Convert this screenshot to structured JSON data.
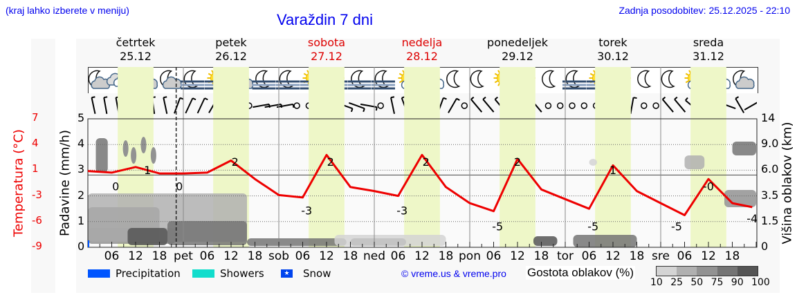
{
  "header": {
    "note": "(kraj lahko izberete v meniju)",
    "title": "Varaždin 7 dni",
    "updated": "Zadnja posodobitev: 25.12.2025 - 22:10"
  },
  "days": [
    {
      "name": "četrtek",
      "date": "25.12",
      "weekend": false
    },
    {
      "name": "petek",
      "date": "26.12",
      "weekend": false
    },
    {
      "name": "sobota",
      "date": "27.12",
      "weekend": true
    },
    {
      "name": "nedelja",
      "date": "28.12",
      "weekend": true
    },
    {
      "name": "ponedeljek",
      "date": "29.12",
      "weekend": false
    },
    {
      "name": "torek",
      "date": "30.12",
      "weekend": false
    },
    {
      "name": "sreda",
      "date": "31.12",
      "weekend": false
    }
  ],
  "axes": {
    "temp_label": "Temperatura (°C)",
    "temp_ticks": [
      "7",
      "4",
      "1",
      "-3",
      "-6",
      "-9"
    ],
    "precip_label": "Padavine (mm/h)",
    "precip_ticks": [
      "5",
      "4",
      "3",
      "2",
      "1",
      "0"
    ],
    "cloud_label": "Višina oblakov (km)",
    "cloud_ticks": [
      "14",
      "9.0",
      "6.0",
      "3.5",
      "1.5",
      "0"
    ],
    "x_ticks": [
      "06",
      "12",
      "18",
      "pet",
      "06",
      "12",
      "18",
      "sob",
      "06",
      "12",
      "18",
      "ned",
      "06",
      "12",
      "18",
      "pon",
      "06",
      "12",
      "18",
      "tor",
      "06",
      "12",
      "18",
      "sre",
      "06",
      "12",
      "18"
    ]
  },
  "weather_icons": [
    "moon-cloud",
    "cloud",
    "sun-cloud",
    "moon-cloud",
    "moon-fog",
    "sun-fog",
    "sun-cloud",
    "moon-fog",
    "moon-fog",
    "sun-fog",
    "sun-fog",
    "moon-fog",
    "moon-fog",
    "sun-cloud",
    "sun-cloud",
    "moon",
    "moon",
    "sun",
    "sun",
    "moon",
    "moon-fog",
    "sun-fog",
    "sun",
    "moon",
    "moon",
    "sun-cloud",
    "sun-cloud",
    "moon-cloud"
  ],
  "legend": {
    "precipitation": "Precipitation",
    "showers": "Showers",
    "snow": "Snow",
    "precipitation_color": "#0055ff",
    "showers_color": "#11ddcc",
    "snow_color": "#0044ee",
    "credit": "© vreme.us & vreme.pro",
    "cloud_density_label": "Gostota oblakov (%)",
    "cloud_density_scale": [
      "10",
      "25",
      "50",
      "75",
      "90",
      "100"
    ],
    "cloud_density_colors": [
      "#d4d4d4",
      "#b0b0b0",
      "#929292",
      "#747474",
      "#555555"
    ]
  },
  "chart_data": {
    "type": "line",
    "title": "Varaždin 7 dni",
    "xlabel": "",
    "ylabel": "Temperatura (°C)",
    "ylim": [
      -9,
      7
    ],
    "x_hours": [
      0,
      6,
      12,
      18,
      24,
      30,
      36,
      42,
      48,
      54,
      60,
      66,
      72,
      78,
      84,
      90,
      96,
      102,
      108,
      114,
      120,
      126,
      132,
      138,
      144,
      150,
      156,
      162,
      167
    ],
    "series": [
      {
        "name": "Temperatura",
        "color": "#ee0000",
        "values": [
          0.5,
          0.3,
          1.0,
          0.2,
          0.2,
          0.3,
          1.8,
          -0.5,
          -2.5,
          -2.8,
          2.5,
          -1.5,
          -2.0,
          -2.6,
          2.5,
          -1.5,
          -3.5,
          -4.5,
          2.0,
          -1.8,
          -3.0,
          -4.2,
          1.2,
          -2.0,
          -3.5,
          -5.0,
          -0.5,
          -3.5,
          -4.0
        ]
      }
    ],
    "temp_annotations": [
      {
        "hour": 7,
        "value": "0"
      },
      {
        "hour": 15,
        "value": "1"
      },
      {
        "hour": 23,
        "value": "0"
      },
      {
        "hour": 37,
        "value": "2"
      },
      {
        "hour": 55,
        "value": "-3"
      },
      {
        "hour": 61,
        "value": "2"
      },
      {
        "hour": 79,
        "value": "-3"
      },
      {
        "hour": 85,
        "value": "2"
      },
      {
        "hour": 103,
        "value": "-5"
      },
      {
        "hour": 108,
        "value": "2"
      },
      {
        "hour": 127,
        "value": "-5"
      },
      {
        "hour": 132,
        "value": "1"
      },
      {
        "hour": 148,
        "value": "-5"
      },
      {
        "hour": 156,
        "value": "-0"
      },
      {
        "hour": 167,
        "value": "-4"
      }
    ],
    "now_marker_hour": 22.2,
    "grid": true,
    "legend_position": "bottom"
  }
}
